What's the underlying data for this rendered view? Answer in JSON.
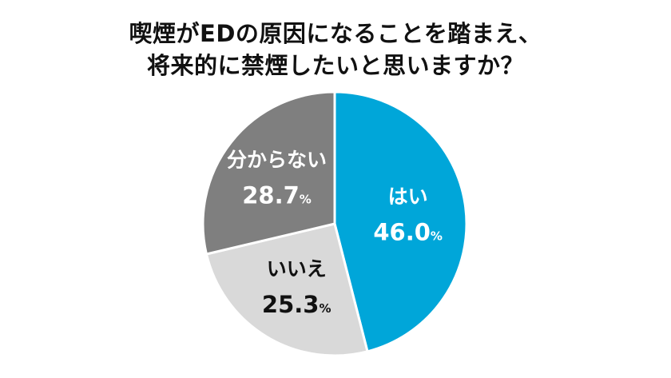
{
  "title_lines": [
    "喫煙がEDの原因になることを踏まえ、",
    "将来的に禁煙したいと思いますか？"
  ],
  "chart_data": {
    "type": "pie",
    "title": "喫煙がEDの原因になることを踏まえ、将来的に禁煙したいと思いますか？",
    "unit": "%",
    "start_angle_deg": 0,
    "direction": "clockwise",
    "slices": [
      {
        "label": "はい",
        "value": 46.0,
        "value_text": "46.0",
        "color": "#00a6d9",
        "text_color": "#ffffff"
      },
      {
        "label": "いいえ",
        "value": 25.3,
        "value_text": "25.3",
        "color": "#d9d9d9",
        "text_color": "#111111"
      },
      {
        "label": "分からない",
        "value": 28.7,
        "value_text": "28.7",
        "color": "#7f7f7f",
        "text_color": "#ffffff"
      }
    ]
  }
}
